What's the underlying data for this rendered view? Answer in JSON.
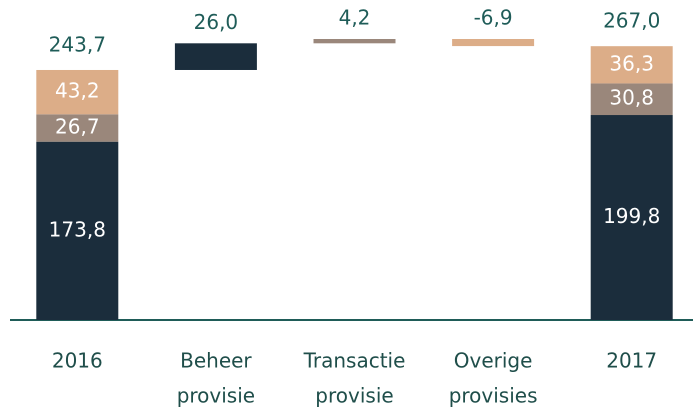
{
  "chart_data": {
    "type": "waterfall",
    "categories": [
      [
        "2016"
      ],
      [
        "Beheer",
        "provisie"
      ],
      [
        "Transactie",
        "provisie"
      ],
      [
        "Overige",
        "provisies"
      ],
      [
        "2017"
      ]
    ],
    "series": [
      {
        "color": "#1b2d3c",
        "values": [
          173.8,
          null,
          null,
          null,
          199.8
        ],
        "value_labels": [
          "173,8",
          null,
          null,
          null,
          "199,8"
        ]
      },
      {
        "color": "#9a877b",
        "values": [
          26.7,
          null,
          null,
          null,
          30.8
        ],
        "value_labels": [
          "26,7",
          null,
          null,
          null,
          "30,8"
        ]
      },
      {
        "color": "#dcad88",
        "values": [
          43.2,
          null,
          null,
          null,
          36.3
        ],
        "value_labels": [
          "43,2",
          null,
          null,
          null,
          "36,3"
        ]
      }
    ],
    "deltas": {
      "values": [
        null,
        26.0,
        4.2,
        -6.9,
        null
      ],
      "value_labels": [
        null,
        "26,0",
        "4,2",
        "-6,9",
        null
      ],
      "colors": [
        null,
        "#1b2d3c",
        "#9a877b",
        "#dcad88",
        null
      ]
    },
    "totals": {
      "values": [
        243.7,
        null,
        null,
        null,
        267.0
      ],
      "value_labels": [
        "243,7",
        null,
        null,
        null,
        "267,0"
      ]
    }
  }
}
